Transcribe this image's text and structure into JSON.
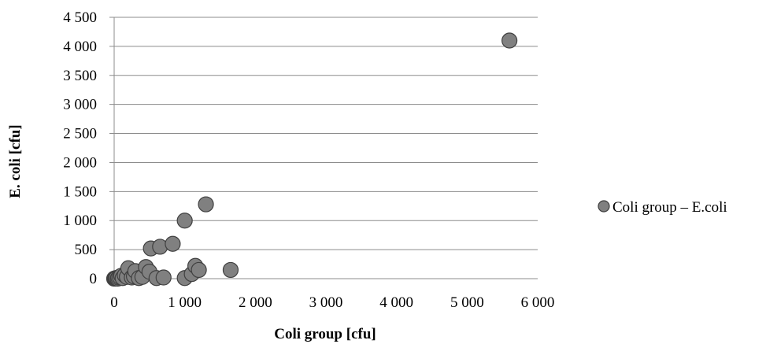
{
  "chart_data": {
    "type": "scatter",
    "title": "",
    "xlabel": "Coli group [cfu]",
    "ylabel": "E. coli [cfu]",
    "xlim": [
      0,
      6000
    ],
    "ylim": [
      0,
      4500
    ],
    "x_ticks": [
      "0",
      "1 000",
      "2 000",
      "3 000",
      "4 000",
      "5 000",
      "6 000"
    ],
    "y_ticks": [
      "0",
      "500",
      "1 000",
      "1 500",
      "2 000",
      "2 500",
      "3 000",
      "3 500",
      "4 000",
      "4 500"
    ],
    "grid": "horizontal",
    "legend_position": "right",
    "marker_color": "#808080",
    "series": [
      {
        "name": "Coli group – E.coli",
        "points": [
          [
            0,
            0
          ],
          [
            10,
            5
          ],
          [
            20,
            0
          ],
          [
            30,
            10
          ],
          [
            50,
            0
          ],
          [
            60,
            20
          ],
          [
            80,
            30
          ],
          [
            100,
            50
          ],
          [
            120,
            10
          ],
          [
            150,
            60
          ],
          [
            180,
            30
          ],
          [
            200,
            180
          ],
          [
            250,
            20
          ],
          [
            280,
            40
          ],
          [
            300,
            130
          ],
          [
            350,
            10
          ],
          [
            400,
            30
          ],
          [
            450,
            200
          ],
          [
            500,
            120
          ],
          [
            520,
            520
          ],
          [
            600,
            10
          ],
          [
            650,
            550
          ],
          [
            700,
            20
          ],
          [
            830,
            600
          ],
          [
            1000,
            1000
          ],
          [
            1000,
            10
          ],
          [
            1100,
            80
          ],
          [
            1150,
            220
          ],
          [
            1200,
            150
          ],
          [
            1300,
            1280
          ],
          [
            1650,
            150
          ],
          [
            5600,
            4100
          ]
        ]
      }
    ]
  }
}
